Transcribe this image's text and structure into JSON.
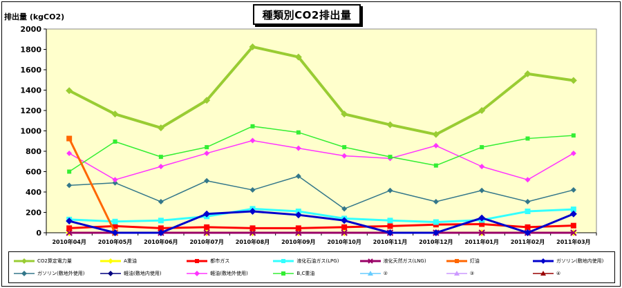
{
  "chart_data": {
    "type": "line",
    "title": "種類別CO2排出量",
    "ylabel": "排出量 (kgCO2)",
    "xlabel": "",
    "ylim": [
      0,
      2000
    ],
    "yticks": [
      0,
      200,
      400,
      600,
      800,
      1000,
      1200,
      1400,
      1600,
      1800,
      2000
    ],
    "grid": false,
    "legend_position": "bottom",
    "plot_background": "#FFFFCC",
    "categories": [
      "2010年04月",
      "2010年05月",
      "2010年06月",
      "2010年07月",
      "2010年08月",
      "2010年09月",
      "2010年10月",
      "2010年11月",
      "2010年12月",
      "2011年01月",
      "2011年02月",
      "2011年03月"
    ],
    "series": [
      {
        "name": "CO2算定電力量",
        "color": "#99CC33",
        "marker": "diamond",
        "width": 4,
        "values": [
          1395,
          1165,
          1030,
          1300,
          1825,
          1725,
          1165,
          1060,
          965,
          1200,
          1560,
          1495
        ]
      },
      {
        "name": "A重油",
        "color": "#FFFF00",
        "marker": "diamond",
        "width": 3,
        "values": [
          0,
          0,
          0,
          0,
          0,
          0,
          0,
          0,
          0,
          0,
          0,
          0
        ]
      },
      {
        "name": "都市ガス",
        "color": "#FF0000",
        "marker": "square",
        "width": 3,
        "values": [
          45,
          65,
          45,
          55,
          45,
          45,
          55,
          65,
          80,
          85,
          55,
          70
        ]
      },
      {
        "name": "液化石油ガス(LPG)",
        "color": "#33FFFF",
        "marker": "square",
        "width": 3,
        "values": [
          130,
          110,
          120,
          160,
          235,
          210,
          140,
          120,
          105,
          125,
          210,
          230
        ]
      },
      {
        "name": "液化天然ガス(LNG)",
        "color": "#990066",
        "marker": "x",
        "width": 3,
        "values": [
          0,
          0,
          0,
          0,
          0,
          0,
          0,
          0,
          0,
          0,
          0,
          0
        ]
      },
      {
        "name": "灯油",
        "color": "#FF6600",
        "marker": "square",
        "width": 3,
        "values": [
          925,
          0,
          null,
          null,
          null,
          null,
          null,
          null,
          null,
          null,
          null,
          null
        ]
      },
      {
        "name": "ガソリン(敷地内使用)",
        "color": "#0000CC",
        "marker": "diamond",
        "width": 3,
        "values": [
          115,
          0,
          0,
          185,
          210,
          175,
          120,
          0,
          0,
          145,
          0,
          185
        ]
      },
      {
        "name": "ガソリン(敷地外使用)",
        "color": "#33778A",
        "marker": "diamond",
        "width": 1.5,
        "values": [
          465,
          490,
          305,
          510,
          420,
          555,
          235,
          415,
          305,
          415,
          305,
          420
        ]
      },
      {
        "name": "軽油(敷地内使用)",
        "color": "#000080",
        "marker": "diamond",
        "width": 1.5,
        "values": [
          0,
          0,
          0,
          0,
          0,
          0,
          0,
          0,
          0,
          0,
          0,
          0
        ]
      },
      {
        "name": "軽油(敷地外使用)",
        "color": "#FF33FF",
        "marker": "diamond",
        "width": 1.5,
        "values": [
          780,
          520,
          650,
          780,
          905,
          830,
          755,
          730,
          855,
          650,
          520,
          780
        ]
      },
      {
        "name": "B,C重油",
        "color": "#33EE33",
        "marker": "square",
        "width": 1.5,
        "values": [
          600,
          895,
          745,
          840,
          1045,
          985,
          840,
          745,
          660,
          840,
          925,
          955
        ]
      },
      {
        "name": "②",
        "color": "#66CCFF",
        "marker": "triangle",
        "width": 1.5,
        "values": [
          0,
          0,
          0,
          0,
          0,
          0,
          0,
          0,
          0,
          0,
          0,
          0
        ]
      },
      {
        "name": "③",
        "color": "#CC99FF",
        "marker": "triangle",
        "width": 1.5,
        "values": [
          0,
          0,
          0,
          0,
          0,
          0,
          0,
          0,
          0,
          0,
          0,
          0
        ]
      },
      {
        "name": "④",
        "color": "#990000",
        "marker": "triangle",
        "width": 1.5,
        "values": [
          0,
          0,
          0,
          0,
          0,
          0,
          0,
          0,
          0,
          0,
          0,
          0
        ]
      }
    ]
  }
}
